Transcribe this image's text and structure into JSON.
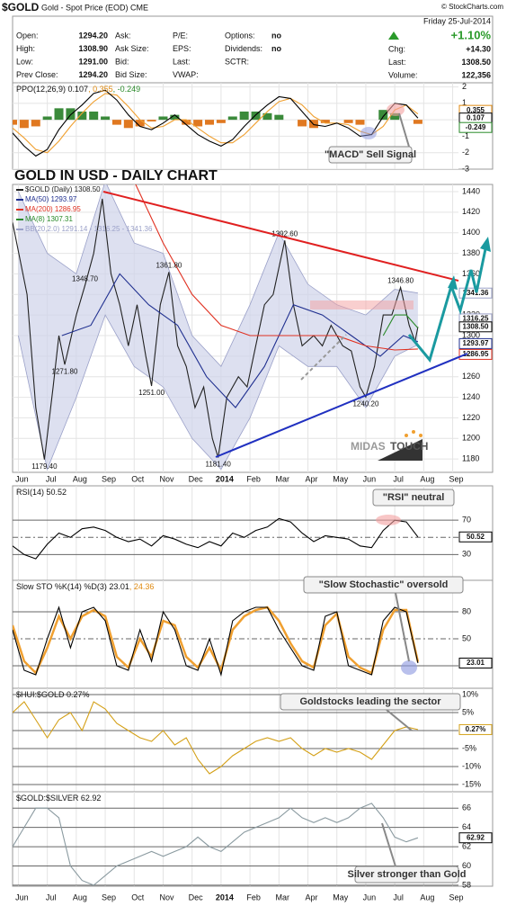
{
  "header": {
    "symbol": "$GOLD",
    "description": "Gold - Spot Price (EOD) CME",
    "copyright": "© StockCharts.com",
    "date": "Friday 25-Jul-2014",
    "col1": [
      [
        "Open:",
        "1294.20"
      ],
      [
        "High:",
        "1308.90"
      ],
      [
        "Low:",
        "1291.00"
      ],
      [
        "Prev Close:",
        "1294.20"
      ]
    ],
    "col2": [
      "Ask:",
      "Ask Size:",
      "Bid:",
      "Bid Size:"
    ],
    "col3": [
      "P/E:",
      "EPS:",
      "Last:",
      "VWAP:"
    ],
    "col4_labels": [
      "Options:",
      "Dividends:",
      "SCTR:"
    ],
    "col4_values": [
      "no",
      "no"
    ],
    "change": "+1.10%",
    "right": [
      [
        "Chg:",
        "+14.30"
      ],
      [
        "Last:",
        "1308.50"
      ],
      [
        "Volume:",
        "122,356"
      ]
    ]
  },
  "logo": [
    "MIDAS",
    "TOUCH"
  ],
  "xaxis": {
    "xlim": [
      -0.2,
      15.2
    ],
    "xticks": [
      {
        "value": 0,
        "label": "Jun"
      },
      {
        "value": 1,
        "label": "Jul"
      },
      {
        "value": 2,
        "label": "Aug"
      },
      {
        "value": 3,
        "label": "Sep"
      },
      {
        "value": 4,
        "label": "Oct"
      },
      {
        "value": 5,
        "label": "Nov"
      },
      {
        "value": 6,
        "label": "Dec"
      },
      {
        "value": 7,
        "label": "2014"
      },
      {
        "value": 8,
        "label": "Feb"
      },
      {
        "value": 9,
        "label": "Mar"
      },
      {
        "value": 10,
        "label": "Apr"
      },
      {
        "value": 11,
        "label": "May"
      },
      {
        "value": 12,
        "label": "Jun"
      },
      {
        "value": 13,
        "label": "Jul"
      },
      {
        "value": 14,
        "label": "Aug"
      },
      {
        "value": 15,
        "label": "Sep"
      }
    ]
  },
  "chart_data": [
    {
      "type": "line",
      "title": [
        "PPO(12,26,9) 0.107",
        ", 0.355",
        ", -0.249"
      ],
      "title_colors": [
        "#111",
        "#e08a10",
        "#2a8a2a"
      ],
      "ylim": [
        -3,
        2.25
      ],
      "yticks": [
        2,
        1,
        0,
        -1,
        -2,
        -3
      ],
      "annotation": "\"MACD\" Sell Signal",
      "x": [
        -0.2,
        0.2,
        0.6,
        1.0,
        1.4,
        1.8,
        2.2,
        2.6,
        3.0,
        3.4,
        3.8,
        4.2,
        4.6,
        5.0,
        5.4,
        5.8,
        6.2,
        6.6,
        7.0,
        7.4,
        7.8,
        8.2,
        8.6,
        9.0,
        9.4,
        9.8,
        10.2,
        10.6,
        11.0,
        11.4,
        11.8,
        12.2,
        12.6,
        13.0,
        13.4,
        13.8
      ],
      "series": [
        {
          "type": "histogram",
          "pos_color": "#3a8a3a",
          "neg_color": "#e07820",
          "values": [
            -0.3,
            -0.5,
            -0.4,
            0.2,
            0.7,
            0.7,
            0.5,
            0.5,
            0.2,
            -0.3,
            -0.5,
            -0.4,
            -0.1,
            0.2,
            0.3,
            -0.3,
            -0.4,
            -0.3,
            -0.2,
            0.2,
            0.5,
            0.5,
            0.4,
            0.3,
            0.0,
            -0.4,
            -0.5,
            -0.2,
            0.0,
            -0.2,
            -0.3,
            0.0,
            0.6,
            0.4,
            0.0,
            -0.249
          ]
        },
        {
          "type": "line",
          "color": "#f0a030",
          "values": [
            -0.5,
            -1.1,
            -1.8,
            -2.0,
            -1.3,
            -0.4,
            0.4,
            1.1,
            1.6,
            1.5,
            0.8,
            0.0,
            -0.5,
            -0.4,
            0.0,
            0.0,
            -0.5,
            -1.0,
            -1.4,
            -1.4,
            -0.9,
            -0.2,
            0.5,
            1.1,
            1.3,
            0.9,
            0.2,
            -0.2,
            -0.2,
            -0.3,
            -0.7,
            -0.9,
            -0.4,
            0.6,
            0.9,
            0.355
          ]
        },
        {
          "type": "line",
          "color": "#000000",
          "values": [
            -0.8,
            -1.6,
            -2.2,
            -1.8,
            -0.6,
            0.3,
            0.9,
            1.6,
            1.8,
            1.2,
            0.3,
            -0.4,
            -0.6,
            -0.2,
            0.3,
            -0.3,
            -0.9,
            -1.3,
            -1.6,
            -1.2,
            -0.4,
            0.3,
            0.9,
            1.4,
            1.3,
            0.5,
            -0.3,
            -0.4,
            -0.2,
            -0.5,
            -1.0,
            -0.9,
            0.2,
            1.0,
            0.9,
            0.107
          ]
        }
      ],
      "tags": {
        "values": [
          0.355,
          0.107,
          -0.249
        ],
        "colors": [
          "#e08a10",
          "#000000",
          "#2a8a2a"
        ]
      }
    },
    {
      "type": "line",
      "title": "GOLD IN USD - DAILY CHART",
      "ylim": [
        1167,
        1447
      ],
      "yticks": [
        1180,
        1200,
        1220,
        1240,
        1260,
        1280,
        1300,
        1320,
        1340,
        1360,
        1380,
        1400,
        1420,
        1440
      ],
      "series": [
        {
          "type": "band",
          "name": "BB(20,2.0) 1291.14 - 1316.25 - 1341.36",
          "color": "#9aa0c8",
          "fill": "#cfd3ea",
          "x": [
            0,
            1,
            2,
            3,
            4,
            5,
            6,
            7,
            8,
            9,
            10,
            11,
            12,
            13,
            13.8
          ],
          "upper": [
            1440,
            1380,
            1360,
            1450,
            1390,
            1380,
            1300,
            1270,
            1330,
            1400,
            1350,
            1330,
            1320,
            1345,
            1341.36
          ],
          "lower": [
            1300,
            1170,
            1240,
            1320,
            1270,
            1250,
            1200,
            1170,
            1220,
            1290,
            1270,
            1270,
            1230,
            1280,
            1291.14
          ]
        },
        {
          "type": "line",
          "name": "$GOLD (Daily) 1308.50",
          "color": "#222222",
          "x": [
            -0.2,
            0.3,
            0.6,
            0.9,
            1.2,
            1.4,
            1.6,
            2.0,
            2.3,
            2.6,
            2.9,
            3.2,
            3.5,
            3.8,
            4.1,
            4.4,
            4.6,
            4.9,
            5.2,
            5.5,
            5.8,
            6.1,
            6.4,
            6.7,
            6.9,
            7.2,
            7.6,
            7.9,
            8.2,
            8.5,
            8.8,
            9.2,
            9.5,
            9.8,
            10.2,
            10.5,
            10.8,
            11.2,
            11.5,
            11.8,
            12.0,
            12.3,
            12.6,
            12.9,
            13.2,
            13.5,
            13.7,
            13.8
          ],
          "values": [
            1410,
            1340,
            1230,
            1179.4,
            1250,
            1300,
            1271.8,
            1320,
            1348.7,
            1380,
            1433,
            1360,
            1330,
            1290,
            1330,
            1280,
            1251,
            1330,
            1361.8,
            1290,
            1270,
            1230,
            1250,
            1200,
            1181.4,
            1240,
            1260,
            1250,
            1290,
            1330,
            1340,
            1392.6,
            1330,
            1290,
            1300,
            1290,
            1310,
            1290,
            1285,
            1250,
            1240.2,
            1270,
            1320,
            1320,
            1346.8,
            1310,
            1294.2,
            1308.5
          ]
        },
        {
          "type": "line",
          "name": "MA(50) 1293.97",
          "color": "#1f2f8f",
          "x": [
            1.5,
            2.5,
            3.5,
            4.5,
            5.5,
            6.5,
            7.5,
            8.5,
            9.5,
            10.5,
            11.5,
            12.5,
            13.3,
            13.8
          ],
          "values": [
            1300,
            1310,
            1360,
            1330,
            1310,
            1260,
            1230,
            1270,
            1330,
            1320,
            1300,
            1280,
            1300,
            1293.97
          ]
        },
        {
          "type": "line",
          "name": "MA(200) 1286.95",
          "color": "#e03020",
          "x": [
            4.0,
            5,
            6,
            7,
            8,
            9,
            10,
            11,
            12,
            13,
            13.8
          ],
          "values": [
            1450,
            1390,
            1340,
            1310,
            1300,
            1300,
            1300,
            1300,
            1290,
            1286,
            1286.95
          ]
        },
        {
          "type": "line",
          "name": "MA(8) 1307.31",
          "color": "#2a8a2a",
          "x": [
            12.6,
            13.0,
            13.4,
            13.8
          ],
          "values": [
            1300,
            1320,
            1320,
            1307.31
          ]
        }
      ],
      "point_labels": {
        "x": [
          9.2,
          2.3,
          5.2,
          1.6,
          4.6,
          0.9,
          6.9,
          12.0,
          13.2
        ],
        "values": [
          1392.6,
          1348.7,
          1361.8,
          1271.8,
          1251,
          1179.4,
          1181.4,
          1240.2,
          1346.8
        ],
        "value_labels": [
          "1392.60",
          "1348.70",
          "1361.80",
          "1271.80",
          "1251.00",
          "1179.40",
          "1181.40",
          "1240.20",
          "1346.80"
        ]
      },
      "tags": {
        "values": [
          1341.36,
          1316.25,
          1308.5,
          1293.97,
          1286.95
        ],
        "value_labels": [
          "1341.36",
          "1316.25",
          "1308.50",
          "1293.97",
          "1286.95"
        ],
        "colors": [
          "#9aa0c8",
          "#9aa0c8",
          "#000000",
          "#1f2f8f",
          "#e03020"
        ]
      }
    },
    {
      "type": "line",
      "title": [
        "RSI(14) 50.52"
      ],
      "title_colors": [
        "#111"
      ],
      "ylim": [
        0,
        110
      ],
      "yticks": [
        30,
        50,
        70
      ],
      "annotation": "\"RSI\" neutral",
      "x": [
        -0.2,
        0.2,
        0.6,
        1.0,
        1.4,
        1.8,
        2.2,
        2.6,
        3.0,
        3.4,
        3.8,
        4.2,
        4.6,
        5.0,
        5.4,
        5.8,
        6.2,
        6.6,
        7.0,
        7.4,
        7.8,
        8.2,
        8.6,
        9.0,
        9.4,
        9.8,
        10.2,
        10.6,
        11.0,
        11.4,
        11.8,
        12.2,
        12.6,
        13.0,
        13.4,
        13.8
      ],
      "series": [
        {
          "type": "line",
          "color": "#000000",
          "values": [
            40,
            30,
            25,
            42,
            55,
            50,
            60,
            62,
            58,
            50,
            45,
            48,
            40,
            52,
            48,
            42,
            38,
            45,
            40,
            55,
            50,
            58,
            62,
            72,
            68,
            55,
            45,
            52,
            50,
            48,
            40,
            38,
            58,
            70,
            68,
            50.52
          ]
        }
      ],
      "tags": {
        "values": [
          50.52
        ],
        "colors": [
          "#000000"
        ]
      }
    },
    {
      "type": "line",
      "title": [
        "Slow STO %K(14) %D(3) 23.01",
        ", 24.36"
      ],
      "title_colors": [
        "#111",
        "#e08a10"
      ],
      "ylim": [
        -5,
        115
      ],
      "yticks": [
        20,
        50,
        80
      ],
      "annotation": "\"Slow Stochastic\" oversold",
      "x": [
        -0.2,
        0.2,
        0.6,
        1.0,
        1.4,
        1.8,
        2.2,
        2.6,
        3.0,
        3.4,
        3.8,
        4.2,
        4.6,
        5.0,
        5.4,
        5.8,
        6.2,
        6.6,
        7.0,
        7.4,
        7.8,
        8.2,
        8.6,
        9.0,
        9.4,
        9.8,
        10.2,
        10.6,
        11.0,
        11.4,
        11.8,
        12.2,
        12.6,
        13.0,
        13.4,
        13.8
      ],
      "series": [
        {
          "type": "line",
          "color": "#f0a030",
          "width": 2.5,
          "values": [
            65,
            25,
            12,
            40,
            75,
            50,
            75,
            82,
            75,
            30,
            18,
            50,
            30,
            70,
            65,
            30,
            18,
            40,
            15,
            60,
            75,
            82,
            85,
            70,
            45,
            25,
            18,
            65,
            78,
            30,
            18,
            12,
            60,
            82,
            82,
            24.36
          ]
        },
        {
          "type": "line",
          "color": "#000000",
          "values": [
            60,
            15,
            10,
            50,
            85,
            40,
            80,
            85,
            70,
            20,
            15,
            60,
            25,
            80,
            60,
            20,
            15,
            50,
            10,
            70,
            80,
            85,
            85,
            60,
            40,
            20,
            15,
            75,
            80,
            20,
            15,
            10,
            70,
            85,
            80,
            23.01
          ]
        }
      ],
      "tags": {
        "values": [
          23.01
        ],
        "colors": [
          "#000000"
        ]
      }
    },
    {
      "type": "line",
      "title": [
        "$HUI:$GOLD 0.27%"
      ],
      "title_colors": [
        "#111"
      ],
      "ylim": [
        -17,
        11.75
      ],
      "yticks": [
        {
          "value": -15,
          "label": "-15%"
        },
        {
          "value": -10,
          "label": "-10%"
        },
        {
          "value": -5,
          "label": "-5%"
        },
        {
          "value": 0,
          "label": "0%"
        },
        {
          "value": 5,
          "label": "5%"
        },
        {
          "value": 10,
          "label": "10%"
        }
      ],
      "annotation": "Goldstocks leading the sector",
      "x": [
        -0.2,
        0.2,
        0.6,
        1.0,
        1.4,
        1.8,
        2.2,
        2.6,
        3.0,
        3.4,
        3.8,
        4.2,
        4.6,
        5.0,
        5.4,
        5.8,
        6.2,
        6.6,
        7.0,
        7.4,
        7.8,
        8.2,
        8.6,
        9.0,
        9.4,
        9.8,
        10.2,
        10.6,
        11.0,
        11.4,
        11.8,
        12.2,
        12.6,
        13.0,
        13.4,
        13.8
      ],
      "series": [
        {
          "type": "line",
          "color": "#d4a017",
          "values": [
            5,
            8,
            3,
            -2,
            3,
            5,
            0,
            8,
            6,
            2,
            0,
            -2,
            -3,
            0,
            -4,
            -2,
            -8,
            -12,
            -10,
            -7,
            -5,
            -3,
            -2,
            -3,
            -2,
            -5,
            -7,
            -5,
            -6,
            -5,
            -6,
            -8,
            -4,
            0,
            1,
            0.27
          ]
        }
      ],
      "tags": {
        "values": [
          0.27
        ],
        "value_labels": [
          "0.27%"
        ],
        "colors": [
          "#d4a017"
        ]
      }
    },
    {
      "type": "line",
      "title": [
        "$GOLD:$SILVER 62.92"
      ],
      "title_colors": [
        "#111"
      ],
      "ylim": [
        57.9,
        67.7
      ],
      "yticks": [
        58,
        60,
        62,
        64,
        66
      ],
      "annotation": "Silver stronger than Gold",
      "x": [
        -0.2,
        0.2,
        0.6,
        1.0,
        1.4,
        1.8,
        2.2,
        2.6,
        3.0,
        3.4,
        3.8,
        4.2,
        4.6,
        5.0,
        5.4,
        5.8,
        6.2,
        6.6,
        7.0,
        7.4,
        7.8,
        8.2,
        8.6,
        9.0,
        9.4,
        9.8,
        10.2,
        10.6,
        11.0,
        11.4,
        11.8,
        12.2,
        12.6,
        13.0,
        13.4,
        13.8
      ],
      "series": [
        {
          "type": "line",
          "color": "#8a9aa0",
          "values": [
            62,
            64,
            66,
            66,
            65,
            60,
            58.5,
            58,
            59,
            60,
            60.5,
            61,
            61.5,
            61,
            61.5,
            62,
            63,
            62,
            61.5,
            62.5,
            63.5,
            64,
            64.5,
            65,
            66,
            65,
            64.5,
            65,
            64.5,
            65,
            66,
            66.5,
            65,
            63,
            62.5,
            62.92
          ]
        }
      ],
      "tags": {
        "values": [
          62.92
        ],
        "colors": [
          "#000000"
        ]
      }
    }
  ]
}
